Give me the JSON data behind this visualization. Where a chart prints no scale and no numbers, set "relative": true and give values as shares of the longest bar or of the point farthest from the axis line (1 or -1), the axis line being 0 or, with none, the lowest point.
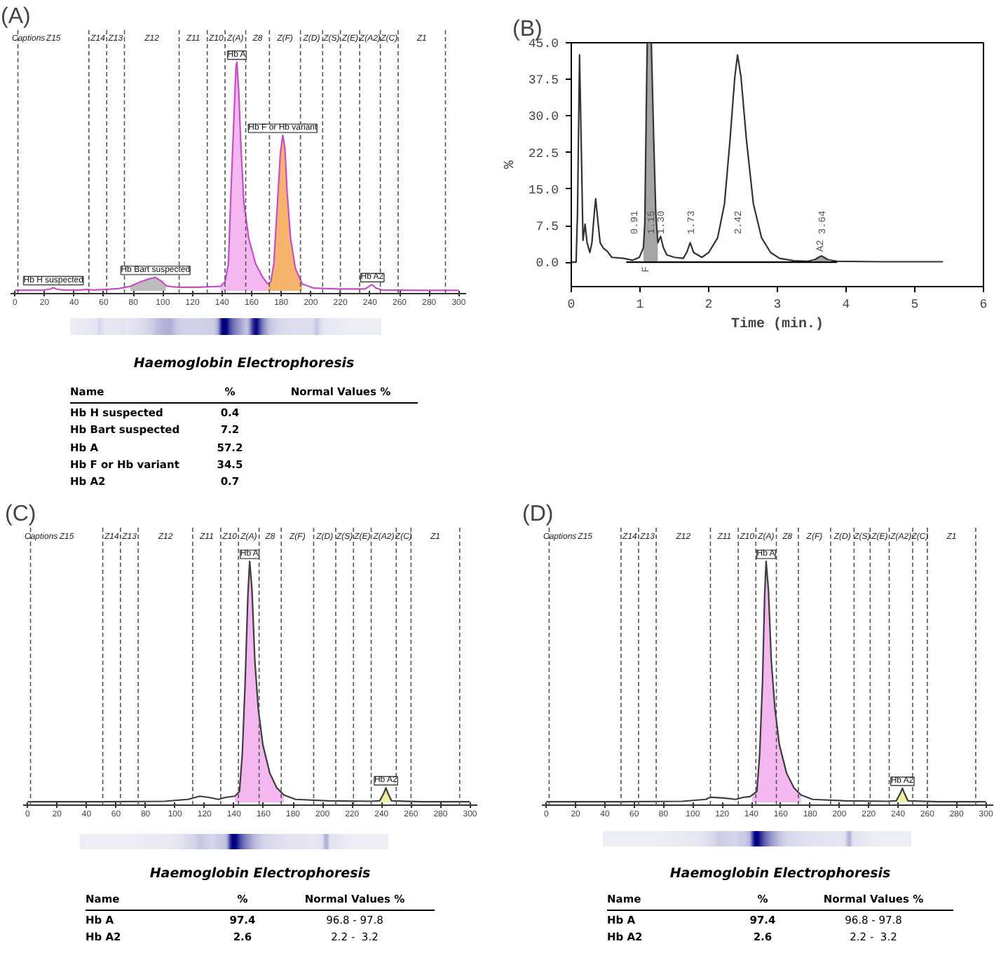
{
  "chart_data": [
    {
      "type": "line",
      "title": "(A)",
      "relative": true,
      "xlim": [
        -3,
        305
      ],
      "xticks": [
        0,
        20,
        40,
        60,
        80,
        100,
        120,
        140,
        160,
        180,
        200,
        220,
        240,
        260,
        280,
        300
      ],
      "ref_lines": [
        {
          "axis": "x",
          "value": 2,
          "line_style": "dashed"
        },
        {
          "axis": "x",
          "value": 50,
          "line_style": "dashed"
        },
        {
          "axis": "x",
          "value": 62,
          "line_style": "dashed"
        },
        {
          "axis": "x",
          "value": 74,
          "line_style": "dashed"
        },
        {
          "axis": "x",
          "value": 111,
          "line_style": "dashed"
        },
        {
          "axis": "x",
          "value": 130,
          "line_style": "dashed"
        },
        {
          "axis": "x",
          "value": 142,
          "line_style": "dashed"
        },
        {
          "axis": "x",
          "value": 156,
          "line_style": "dashed"
        },
        {
          "axis": "x",
          "value": 172,
          "line_style": "dashed"
        },
        {
          "axis": "x",
          "value": 193,
          "line_style": "dashed"
        },
        {
          "axis": "x",
          "value": 208,
          "line_style": "dashed"
        },
        {
          "axis": "x",
          "value": 220,
          "line_style": "dashed"
        },
        {
          "axis": "x",
          "value": 233,
          "line_style": "dashed"
        },
        {
          "axis": "x",
          "value": 247,
          "line_style": "dashed"
        },
        {
          "axis": "x",
          "value": 259,
          "line_style": "dashed"
        },
        {
          "axis": "x",
          "value": 291,
          "line_style": "dashed"
        }
      ],
      "annotations": [
        "Captions",
        "Z15",
        "Z14",
        "Z13",
        "Z12",
        "Z11",
        "Z10",
        "Z(A)",
        "Z8",
        "Z(F)",
        "Z(D)",
        "Z(S)",
        "Z(E)",
        "Z(A2)",
        "Z(C)",
        "Z1",
        {
          "text": "Hb H suspected",
          "x": 26,
          "y": 0.014
        },
        {
          "text": "Hb Bart suspected",
          "x": 95,
          "y": 0.059
        },
        {
          "text": "Hb A",
          "x": 150,
          "y": 1.0
        },
        {
          "text": "Hb F or Hb variant",
          "x": 181,
          "y": 0.68
        },
        {
          "text": "Hb A2",
          "x": 241.6,
          "y": 0.027
        }
      ],
      "series": [
        {
          "type": "area",
          "color": "#b8b8b8",
          "x": [
            78,
            85,
            91,
            95,
            99.5,
            102
          ],
          "values": [
            0.02,
            0.04,
            0.053,
            0.059,
            0.04,
            0.023
          ]
        },
        {
          "type": "area",
          "color": "#f4b3ee",
          "x": [
            139,
            142,
            144.3,
            146,
            147.8,
            149.4,
            150,
            151.2,
            152.8,
            154.7,
            158,
            162.6,
            167.4,
            171
          ],
          "values": [
            0.02,
            0.04,
            0.12,
            0.43,
            0.72,
            0.98,
            1.0,
            0.88,
            0.625,
            0.39,
            0.23,
            0.12,
            0.06,
            0.03
          ]
        },
        {
          "type": "area",
          "color": "#f6b064",
          "x": [
            171,
            173,
            175,
            177.5,
            179.4,
            181,
            182.5,
            184,
            186.3,
            189.5,
            194.2
          ],
          "values": [
            0.03,
            0.04,
            0.12,
            0.39,
            0.6,
            0.68,
            0.625,
            0.43,
            0.23,
            0.1,
            0.03
          ]
        },
        {
          "type": "line",
          "color": "#c94cc9",
          "x": [
            0,
            10,
            20,
            24,
            26,
            28,
            32,
            44,
            49,
            53,
            60,
            70,
            78,
            85,
            91,
            95,
            99.5,
            102,
            106,
            110.5,
            123,
            133,
            139,
            142,
            144.3,
            146,
            147.8,
            149.4,
            150,
            151.2,
            152.8,
            154.7,
            158,
            162.6,
            167.4,
            171,
            173,
            175,
            177.5,
            179.4,
            181,
            182.5,
            184,
            186.3,
            189.5,
            194.2,
            202,
            218,
            236.8,
            240,
            241.6,
            244,
            248,
            274.7,
            300
          ],
          "values": [
            0.002,
            0.003,
            0.004,
            0.008,
            0.014,
            0.008,
            0.004,
            0.004,
            0.006,
            0.004,
            0.006,
            0.01,
            0.02,
            0.04,
            0.053,
            0.059,
            0.04,
            0.023,
            0.018,
            0.016,
            0.016,
            0.018,
            0.02,
            0.04,
            0.12,
            0.43,
            0.72,
            0.98,
            1.0,
            0.88,
            0.625,
            0.39,
            0.23,
            0.12,
            0.06,
            0.03,
            0.04,
            0.12,
            0.39,
            0.6,
            0.68,
            0.625,
            0.43,
            0.23,
            0.1,
            0.03,
            0.012,
            0.008,
            0.008,
            0.023,
            0.027,
            0.012,
            0.004,
            0.002,
            0.002
          ]
        }
      ]
    },
    {
      "type": "other",
      "title": "Haemoglobin Electrophoresis",
      "annotations": [
        "Name"
      ],
      "categories": [
        "Hb H suspected",
        "Hb Bart suspected",
        "Hb A",
        "Hb F or Hb variant",
        "Hb A2"
      ],
      "data_labels": true,
      "series": [
        {
          "name": "%",
          "values": [
            0.4,
            7.2,
            57.2,
            34.5,
            0.7
          ]
        },
        {
          "name": "Normal Values %",
          "values": [
            null,
            null,
            null,
            null,
            null
          ]
        }
      ]
    },
    {
      "type": "line",
      "title": "(B)",
      "xlabel": "Time (min.)",
      "ylabel": "%",
      "xlim": [
        0,
        6
      ],
      "xticks": [
        0,
        1,
        2,
        3,
        4,
        5,
        6
      ],
      "ylim": [
        -5,
        45
      ],
      "yticks": [
        {
          "value": 0,
          "label": "0.0"
        },
        7.5,
        {
          "value": 15,
          "label": "15.0"
        },
        22.5,
        {
          "value": 30,
          "label": "30.0"
        },
        37.5,
        {
          "value": 45,
          "label": "45.0"
        }
      ],
      "annotations": [
        {
          "text": "0.91",
          "x": 0.91,
          "y": 0
        },
        {
          "text": "1.15",
          "x": 1.15,
          "y": 0
        },
        {
          "text": "1.30",
          "x": 1.3,
          "y": 0
        },
        {
          "text": "1.73",
          "x": 1.73,
          "y": 0
        },
        {
          "text": "2.42",
          "x": 2.42,
          "y": 0
        },
        {
          "text": "3.64",
          "x": 3.64,
          "y": 0
        }
      ],
      "series": [
        {
          "type": "area",
          "name": "F",
          "color": "#a0a0a0",
          "x": [
            1.05,
            1.07,
            1.09,
            1.105,
            1.165,
            1.2,
            1.23,
            1.26
          ],
          "values": [
            3,
            8,
            30,
            45,
            45,
            25,
            10,
            4
          ]
        },
        {
          "type": "area",
          "name": "A2",
          "color": "#a0a0a0",
          "x": [
            3.54,
            3.6,
            3.64,
            3.68,
            3.74
          ],
          "values": [
            0.5,
            1,
            1.3,
            1,
            0.5
          ]
        },
        {
          "type": "line",
          "color": "#333333",
          "x": [
            0,
            0.07,
            0.09,
            0.12,
            0.15,
            0.17,
            0.2,
            0.23,
            0.27,
            0.3,
            0.34,
            0.355,
            0.39,
            0.42,
            0.47,
            0.52,
            0.59,
            0.76,
            0.89,
            0.99,
            1.05,
            1.07,
            1.09,
            1.105,
            1.165,
            1.2,
            1.23,
            1.26,
            1.3,
            1.34,
            1.39,
            1.5,
            1.63,
            1.68,
            1.73,
            1.78,
            1.9,
            2.0,
            2.13,
            2.23,
            2.31,
            2.38,
            2.42,
            2.47,
            2.55,
            2.65,
            2.77,
            2.9,
            3.03,
            3.24,
            3.44,
            3.54,
            3.6,
            3.64,
            3.68,
            3.74,
            3.87,
            4.5,
            5.41
          ],
          "values": [
            0,
            0,
            10,
            42.5,
            20,
            4.5,
            7.8,
            4,
            2,
            4,
            11,
            13,
            8,
            4,
            2.8,
            2.3,
            1,
            0.8,
            0.4,
            1,
            3,
            8,
            30,
            45,
            45,
            25,
            10,
            4,
            5.3,
            3,
            1.5,
            1,
            0.8,
            2,
            4,
            2,
            1,
            2,
            5,
            12,
            25,
            38,
            42.5,
            38,
            25,
            12,
            5,
            2,
            0.8,
            0.3,
            0.2,
            0.5,
            1,
            1.3,
            1,
            0.5,
            0.2,
            0.1,
            0.1
          ]
        },
        {
          "type": "line",
          "color": "#000000",
          "x": [
            0.8,
            3.87
          ],
          "values": [
            0,
            0
          ]
        }
      ]
    },
    {
      "type": "line",
      "title": "(C)",
      "relative": true,
      "xlim": [
        -3,
        305
      ],
      "xticks": [
        0,
        20,
        40,
        60,
        80,
        100,
        120,
        140,
        160,
        180,
        200,
        220,
        240,
        260,
        280,
        300
      ],
      "ref_lines": [
        {
          "axis": "x",
          "value": 2,
          "line_style": "dashed"
        },
        {
          "axis": "x",
          "value": 51,
          "line_style": "dashed"
        },
        {
          "axis": "x",
          "value": 63,
          "line_style": "dashed"
        },
        {
          "axis": "x",
          "value": 75,
          "line_style": "dashed"
        },
        {
          "axis": "x",
          "value": 112,
          "line_style": "dashed"
        },
        {
          "axis": "x",
          "value": 131,
          "line_style": "dashed"
        },
        {
          "axis": "x",
          "value": 143,
          "line_style": "dashed"
        },
        {
          "axis": "x",
          "value": 157,
          "line_style": "dashed"
        },
        {
          "axis": "x",
          "value": 172,
          "line_style": "dashed"
        },
        {
          "axis": "x",
          "value": 194,
          "line_style": "dashed"
        },
        {
          "axis": "x",
          "value": 209,
          "line_style": "dashed"
        },
        {
          "axis": "x",
          "value": 221,
          "line_style": "dashed"
        },
        {
          "axis": "x",
          "value": 233,
          "line_style": "dashed"
        },
        {
          "axis": "x",
          "value": 250,
          "line_style": "dashed"
        },
        {
          "axis": "x",
          "value": 260,
          "line_style": "dashed"
        },
        {
          "axis": "x",
          "value": 293,
          "line_style": "dashed"
        }
      ],
      "annotations": [
        "Captions",
        "Z15",
        "Z14",
        "Z13",
        "Z12",
        "Z11",
        "Z10",
        "Z(A)",
        "Z8",
        "Z(F)",
        "Z(D)",
        "Z(S)",
        "Z(E)",
        "Z(A2)",
        "Z(C)",
        "Z1",
        {
          "text": "Hb A",
          "x": 150.6,
          "y": 1.0
        },
        {
          "text": "Hb A2",
          "x": 243,
          "y": 0.06
        }
      ],
      "series": [
        {
          "type": "area",
          "color": "#f4b3ee",
          "x": [
            140.5,
            143.7,
            145.6,
            147.5,
            149.4,
            150.6,
            152.2,
            154.1,
            156.4,
            159.5,
            164.3,
            169,
            173.8
          ],
          "values": [
            0.025,
            0.045,
            0.2,
            0.49,
            0.86,
            1.0,
            0.88,
            0.59,
            0.39,
            0.24,
            0.12,
            0.06,
            0.03
          ]
        },
        {
          "type": "area",
          "color": "#f1eea0",
          "x": [
            238.8,
            241.4,
            243,
            244.5,
            246.8
          ],
          "values": [
            0.006,
            0.035,
            0.06,
            0.035,
            0.006
          ]
        },
        {
          "type": "line",
          "color": "#3d3d3d",
          "x": [
            0,
            50,
            93,
            108.8,
            116.7,
            123,
            129.4,
            134,
            140.5,
            143.7,
            145.6,
            147.5,
            149.4,
            150.6,
            152.2,
            154.1,
            156.4,
            159.5,
            164.3,
            169,
            173.8,
            181.7,
            204,
            232.5,
            238.8,
            241.4,
            243,
            244.5,
            246.8,
            267.4,
            300
          ],
          "values": [
            0.002,
            0.002,
            0.004,
            0.012,
            0.025,
            0.02,
            0.012,
            0.02,
            0.025,
            0.045,
            0.2,
            0.49,
            0.86,
            1.0,
            0.88,
            0.59,
            0.39,
            0.24,
            0.12,
            0.06,
            0.03,
            0.012,
            0.006,
            0.004,
            0.006,
            0.035,
            0.06,
            0.035,
            0.006,
            0.002,
            0.002
          ]
        }
      ]
    },
    {
      "type": "other",
      "title": "Haemoglobin Electrophoresis",
      "annotations": [
        "Name"
      ],
      "categories": [
        "Hb A",
        "Hb A2"
      ],
      "data_labels": true,
      "series": [
        {
          "name": "%",
          "values": [
            97.4,
            2.6
          ]
        },
        {
          "name": "Normal Values %",
          "values": [
            null,
            null
          ],
          "value_labels": [
            "96.8 - 97.8",
            "2.2 -  3.2"
          ]
        }
      ]
    },
    {
      "type": "line",
      "title": "(D)",
      "relative": true,
      "xlim": [
        -3,
        305
      ],
      "xticks": [
        0,
        20,
        40,
        60,
        80,
        100,
        120,
        140,
        160,
        180,
        200,
        220,
        240,
        260,
        280,
        300
      ],
      "ref_lines": [
        {
          "axis": "x",
          "value": 2,
          "line_style": "dashed"
        },
        {
          "axis": "x",
          "value": 51,
          "line_style": "dashed"
        },
        {
          "axis": "x",
          "value": 63,
          "line_style": "dashed"
        },
        {
          "axis": "x",
          "value": 75,
          "line_style": "dashed"
        },
        {
          "axis": "x",
          "value": 112,
          "line_style": "dashed"
        },
        {
          "axis": "x",
          "value": 131,
          "line_style": "dashed"
        },
        {
          "axis": "x",
          "value": 143,
          "line_style": "dashed"
        },
        {
          "axis": "x",
          "value": 157,
          "line_style": "dashed"
        },
        {
          "axis": "x",
          "value": 172,
          "line_style": "dashed"
        },
        {
          "axis": "x",
          "value": 194,
          "line_style": "dashed"
        },
        {
          "axis": "x",
          "value": 210,
          "line_style": "dashed"
        },
        {
          "axis": "x",
          "value": 221,
          "line_style": "dashed"
        },
        {
          "axis": "x",
          "value": 234,
          "line_style": "dashed"
        },
        {
          "axis": "x",
          "value": 250,
          "line_style": "dashed"
        },
        {
          "axis": "x",
          "value": 260,
          "line_style": "dashed"
        },
        {
          "axis": "x",
          "value": 293,
          "line_style": "dashed"
        }
      ],
      "annotations": [
        "Captions",
        "Z15",
        "Z14",
        "Z13",
        "Z12",
        "Z11",
        "Z10",
        "Z(A)",
        "Z8",
        "Z(F)",
        "Z(D)",
        "Z(S)",
        "Z(E)",
        "Z(A2)",
        "Z(C)",
        "Z1",
        {
          "text": "Hb A",
          "x": 150,
          "y": 1.0
        },
        {
          "text": "Hb A2",
          "x": 243,
          "y": 0.058
        }
      ],
      "series": [
        {
          "type": "area",
          "color": "#f4b3ee",
          "x": [
            140.5,
            143.7,
            145.6,
            147.5,
            149,
            150,
            151.6,
            153.5,
            156,
            159,
            164,
            169,
            173.8
          ],
          "values": [
            0.025,
            0.045,
            0.2,
            0.49,
            0.86,
            1.0,
            0.88,
            0.59,
            0.39,
            0.24,
            0.12,
            0.06,
            0.03
          ]
        },
        {
          "type": "area",
          "color": "#f1eea0",
          "x": [
            238.8,
            241.4,
            243,
            244.5,
            246.8
          ],
          "values": [
            0.006,
            0.035,
            0.058,
            0.035,
            0.006
          ]
        },
        {
          "type": "line",
          "color": "#3d3d3d",
          "x": [
            0,
            50,
            93,
            108.8,
            112,
            120,
            129.4,
            134,
            139,
            143.7,
            145.6,
            147.5,
            149,
            150,
            151.6,
            153.5,
            156,
            159,
            164,
            169,
            173.8,
            181.7,
            204,
            232.5,
            238.8,
            241.4,
            243,
            244.5,
            246.8,
            267.4,
            300
          ],
          "values": [
            0.002,
            0.002,
            0.004,
            0.012,
            0.021,
            0.018,
            0.012,
            0.02,
            0.023,
            0.045,
            0.2,
            0.49,
            0.86,
            1.0,
            0.88,
            0.59,
            0.39,
            0.24,
            0.12,
            0.06,
            0.03,
            0.012,
            0.006,
            0.004,
            0.006,
            0.035,
            0.058,
            0.035,
            0.006,
            0.002,
            0.002
          ]
        }
      ]
    },
    {
      "type": "other",
      "title": "Haemoglobin Electrophoresis",
      "annotations": [
        "Name"
      ],
      "categories": [
        "Hb A",
        "Hb A2"
      ],
      "data_labels": true,
      "series": [
        {
          "name": "%",
          "values": [
            97.4,
            2.6
          ]
        },
        {
          "name": "Normal Values %",
          "values": [
            null,
            null
          ],
          "value_labels": [
            "96.8 - 97.8",
            "2.2 -  3.2"
          ]
        }
      ]
    }
  ]
}
